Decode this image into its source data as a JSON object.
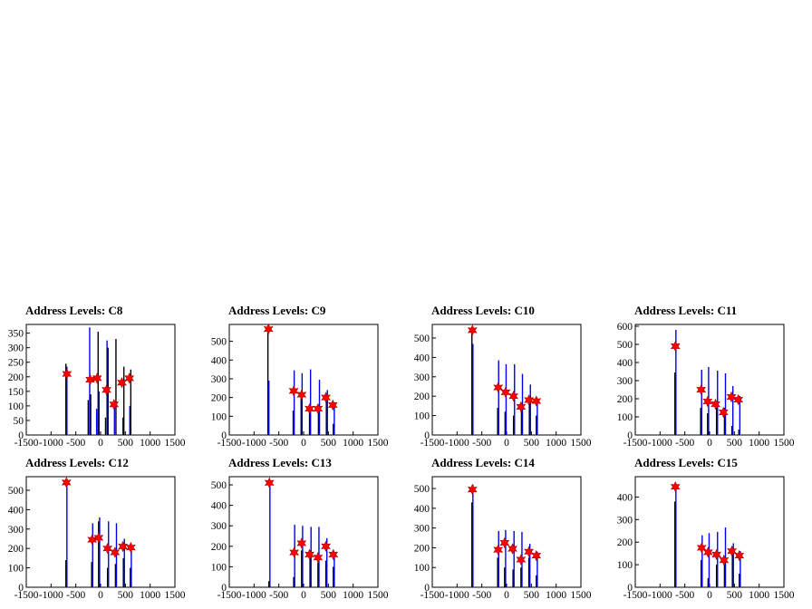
{
  "chart_data": [
    {
      "type": "bar",
      "title": "Address Levels: C8",
      "xlim": [
        -1500,
        1500
      ],
      "ylim": [
        0,
        380
      ],
      "xticks": [
        -1500,
        -1000,
        -500,
        0,
        500,
        1000,
        1500
      ],
      "yticks": [
        0,
        50,
        100,
        150,
        200,
        250,
        300,
        350
      ],
      "bars": [
        {
          "x": -700,
          "y": 245
        },
        {
          "x": -680,
          "y": 235
        },
        {
          "x": -250,
          "y": 120
        },
        {
          "x": -220,
          "y": 370
        },
        {
          "x": -200,
          "y": 140
        },
        {
          "x": -80,
          "y": 90
        },
        {
          "x": -50,
          "y": 355
        },
        {
          "x": -30,
          "y": 150
        },
        {
          "x": 100,
          "y": 60
        },
        {
          "x": 130,
          "y": 325
        },
        {
          "x": 150,
          "y": 300
        },
        {
          "x": 280,
          "y": 100
        },
        {
          "x": 310,
          "y": 330
        },
        {
          "x": 450,
          "y": 60
        },
        {
          "x": 470,
          "y": 235
        },
        {
          "x": 590,
          "y": 100
        },
        {
          "x": 610,
          "y": 225
        }
      ],
      "markers": [
        {
          "x": -680,
          "y": 210
        },
        {
          "x": -210,
          "y": 190
        },
        {
          "x": -70,
          "y": 195
        },
        {
          "x": 120,
          "y": 155
        },
        {
          "x": 270,
          "y": 105
        },
        {
          "x": 430,
          "y": 180
        },
        {
          "x": 580,
          "y": 195
        }
      ]
    },
    {
      "type": "bar",
      "title": "Address Levels: C9",
      "xlim": [
        -1500,
        1500
      ],
      "ylim": [
        0,
        590
      ],
      "xticks": [
        -1500,
        -1000,
        -500,
        0,
        500,
        1000,
        1500
      ],
      "yticks": [
        0,
        100,
        200,
        300,
        400,
        500
      ],
      "bars": [
        {
          "x": -720,
          "y": 560
        },
        {
          "x": -700,
          "y": 290
        },
        {
          "x": -210,
          "y": 130
        },
        {
          "x": -190,
          "y": 345
        },
        {
          "x": -50,
          "y": 200
        },
        {
          "x": -30,
          "y": 330
        },
        {
          "x": 120,
          "y": 120
        },
        {
          "x": 140,
          "y": 350
        },
        {
          "x": 300,
          "y": 120
        },
        {
          "x": 320,
          "y": 295
        },
        {
          "x": 460,
          "y": 180
        },
        {
          "x": 480,
          "y": 240
        },
        {
          "x": 600,
          "y": 60
        },
        {
          "x": 620,
          "y": 175
        }
      ],
      "markers": [
        {
          "x": -710,
          "y": 565
        },
        {
          "x": -200,
          "y": 235
        },
        {
          "x": -40,
          "y": 215
        },
        {
          "x": 120,
          "y": 140
        },
        {
          "x": 290,
          "y": 140
        },
        {
          "x": 450,
          "y": 200
        },
        {
          "x": 590,
          "y": 160
        }
      ]
    },
    {
      "type": "bar",
      "title": "Address Levels: C10",
      "xlim": [
        -1500,
        1500
      ],
      "ylim": [
        0,
        570
      ],
      "xticks": [
        -1500,
        -1000,
        -500,
        0,
        500,
        1000,
        1500
      ],
      "yticks": [
        0,
        100,
        200,
        300,
        400,
        500
      ],
      "bars": [
        {
          "x": -700,
          "y": 540
        },
        {
          "x": -680,
          "y": 470
        },
        {
          "x": -180,
          "y": 140
        },
        {
          "x": -160,
          "y": 385
        },
        {
          "x": -30,
          "y": 120
        },
        {
          "x": -10,
          "y": 365
        },
        {
          "x": 140,
          "y": 100
        },
        {
          "x": 160,
          "y": 365
        },
        {
          "x": 300,
          "y": 130
        },
        {
          "x": 320,
          "y": 315
        },
        {
          "x": 460,
          "y": 160
        },
        {
          "x": 480,
          "y": 260
        },
        {
          "x": 600,
          "y": 100
        },
        {
          "x": 620,
          "y": 185
        }
      ],
      "markers": [
        {
          "x": -690,
          "y": 540
        },
        {
          "x": -170,
          "y": 245
        },
        {
          "x": -20,
          "y": 220
        },
        {
          "x": 140,
          "y": 200
        },
        {
          "x": 290,
          "y": 145
        },
        {
          "x": 450,
          "y": 180
        },
        {
          "x": 600,
          "y": 175
        }
      ]
    },
    {
      "type": "bar",
      "title": "Address Levels: C11",
      "xlim": [
        -1500,
        1500
      ],
      "ylim": [
        0,
        610
      ],
      "xticks": [
        -1500,
        -1000,
        -500,
        0,
        500,
        1000,
        1500
      ],
      "yticks": [
        0,
        100,
        200,
        300,
        400,
        500,
        600
      ],
      "bars": [
        {
          "x": -700,
          "y": 345
        },
        {
          "x": -680,
          "y": 580
        },
        {
          "x": -180,
          "y": 150
        },
        {
          "x": -160,
          "y": 360
        },
        {
          "x": -40,
          "y": 120
        },
        {
          "x": -20,
          "y": 375
        },
        {
          "x": 140,
          "y": 150
        },
        {
          "x": 160,
          "y": 355
        },
        {
          "x": 300,
          "y": 150
        },
        {
          "x": 320,
          "y": 340
        },
        {
          "x": 450,
          "y": 50
        },
        {
          "x": 470,
          "y": 270
        },
        {
          "x": 590,
          "y": 30
        },
        {
          "x": 610,
          "y": 215
        }
      ],
      "markers": [
        {
          "x": -690,
          "y": 490
        },
        {
          "x": -170,
          "y": 250
        },
        {
          "x": -40,
          "y": 185
        },
        {
          "x": 120,
          "y": 170
        },
        {
          "x": 280,
          "y": 125
        },
        {
          "x": 440,
          "y": 210
        },
        {
          "x": 580,
          "y": 195
        }
      ]
    },
    {
      "type": "bar",
      "title": "Address Levels: C12",
      "xlim": [
        -1500,
        1500
      ],
      "ylim": [
        0,
        570
      ],
      "xticks": [
        -1500,
        -1000,
        -500,
        0,
        500,
        1000,
        1500
      ],
      "yticks": [
        0,
        100,
        200,
        300,
        400,
        500
      ],
      "bars": [
        {
          "x": -700,
          "y": 140
        },
        {
          "x": -680,
          "y": 560
        },
        {
          "x": -180,
          "y": 130
        },
        {
          "x": -160,
          "y": 330
        },
        {
          "x": -40,
          "y": 340
        },
        {
          "x": -20,
          "y": 360
        },
        {
          "x": 140,
          "y": 100
        },
        {
          "x": 160,
          "y": 340
        },
        {
          "x": 300,
          "y": 120
        },
        {
          "x": 320,
          "y": 330
        },
        {
          "x": 460,
          "y": 150
        },
        {
          "x": 480,
          "y": 250
        },
        {
          "x": 600,
          "y": 100
        },
        {
          "x": 620,
          "y": 220
        }
      ],
      "markers": [
        {
          "x": -690,
          "y": 540
        },
        {
          "x": -170,
          "y": 245
        },
        {
          "x": -40,
          "y": 255
        },
        {
          "x": 140,
          "y": 200
        },
        {
          "x": 290,
          "y": 180
        },
        {
          "x": 450,
          "y": 210
        },
        {
          "x": 610,
          "y": 205
        }
      ]
    },
    {
      "type": "bar",
      "title": "Address Levels: C13",
      "xlim": [
        -1500,
        1500
      ],
      "ylim": [
        0,
        540
      ],
      "xticks": [
        -1500,
        -1000,
        -500,
        0,
        500,
        1000,
        1500
      ],
      "yticks": [
        0,
        100,
        200,
        300,
        400,
        500
      ],
      "bars": [
        {
          "x": -700,
          "y": 30
        },
        {
          "x": -680,
          "y": 500
        },
        {
          "x": -200,
          "y": 50
        },
        {
          "x": -180,
          "y": 305
        },
        {
          "x": -40,
          "y": 180
        },
        {
          "x": -20,
          "y": 300
        },
        {
          "x": 130,
          "y": 140
        },
        {
          "x": 150,
          "y": 295
        },
        {
          "x": 290,
          "y": 120
        },
        {
          "x": 310,
          "y": 295
        },
        {
          "x": 450,
          "y": 130
        },
        {
          "x": 470,
          "y": 240
        },
        {
          "x": 600,
          "y": 100
        },
        {
          "x": 620,
          "y": 170
        }
      ],
      "markers": [
        {
          "x": -690,
          "y": 510
        },
        {
          "x": -190,
          "y": 170
        },
        {
          "x": -40,
          "y": 215
        },
        {
          "x": 120,
          "y": 160
        },
        {
          "x": 290,
          "y": 145
        },
        {
          "x": 450,
          "y": 200
        },
        {
          "x": 600,
          "y": 160
        }
      ]
    },
    {
      "type": "bar",
      "title": "Address Levels: C14",
      "xlim": [
        -1500,
        1500
      ],
      "ylim": [
        0,
        560
      ],
      "xticks": [
        -1500,
        -1000,
        -500,
        0,
        500,
        1000,
        1500
      ],
      "yticks": [
        0,
        100,
        200,
        300,
        400,
        500
      ],
      "bars": [
        {
          "x": -700,
          "y": 430
        },
        {
          "x": -680,
          "y": 520
        },
        {
          "x": -180,
          "y": 150
        },
        {
          "x": -160,
          "y": 285
        },
        {
          "x": -40,
          "y": 100
        },
        {
          "x": -20,
          "y": 290
        },
        {
          "x": 130,
          "y": 90
        },
        {
          "x": 150,
          "y": 285
        },
        {
          "x": 290,
          "y": 100
        },
        {
          "x": 310,
          "y": 280
        },
        {
          "x": 450,
          "y": 150
        },
        {
          "x": 470,
          "y": 220
        },
        {
          "x": 600,
          "y": 60
        },
        {
          "x": 620,
          "y": 180
        }
      ],
      "markers": [
        {
          "x": -690,
          "y": 495
        },
        {
          "x": -170,
          "y": 190
        },
        {
          "x": -40,
          "y": 225
        },
        {
          "x": 120,
          "y": 195
        },
        {
          "x": 290,
          "y": 140
        },
        {
          "x": 450,
          "y": 180
        },
        {
          "x": 600,
          "y": 160
        }
      ]
    },
    {
      "type": "bar",
      "title": "Address Levels: C15",
      "xlim": [
        -1500,
        1500
      ],
      "ylim": [
        0,
        490
      ],
      "xticks": [
        -1500,
        -1000,
        -500,
        0,
        500,
        1000,
        1500
      ],
      "yticks": [
        0,
        100,
        200,
        300,
        400
      ],
      "bars": [
        {
          "x": -700,
          "y": 380
        },
        {
          "x": -680,
          "y": 460
        },
        {
          "x": -170,
          "y": 120
        },
        {
          "x": -150,
          "y": 230
        },
        {
          "x": -30,
          "y": 40
        },
        {
          "x": -10,
          "y": 240
        },
        {
          "x": 140,
          "y": 100
        },
        {
          "x": 160,
          "y": 245
        },
        {
          "x": 300,
          "y": 100
        },
        {
          "x": 320,
          "y": 265
        },
        {
          "x": 460,
          "y": 150
        },
        {
          "x": 480,
          "y": 195
        },
        {
          "x": 600,
          "y": 60
        },
        {
          "x": 620,
          "y": 160
        }
      ],
      "markers": [
        {
          "x": -690,
          "y": 445
        },
        {
          "x": -160,
          "y": 175
        },
        {
          "x": -30,
          "y": 155
        },
        {
          "x": 140,
          "y": 145
        },
        {
          "x": 290,
          "y": 120
        },
        {
          "x": 450,
          "y": 160
        },
        {
          "x": 600,
          "y": 140
        }
      ]
    }
  ]
}
